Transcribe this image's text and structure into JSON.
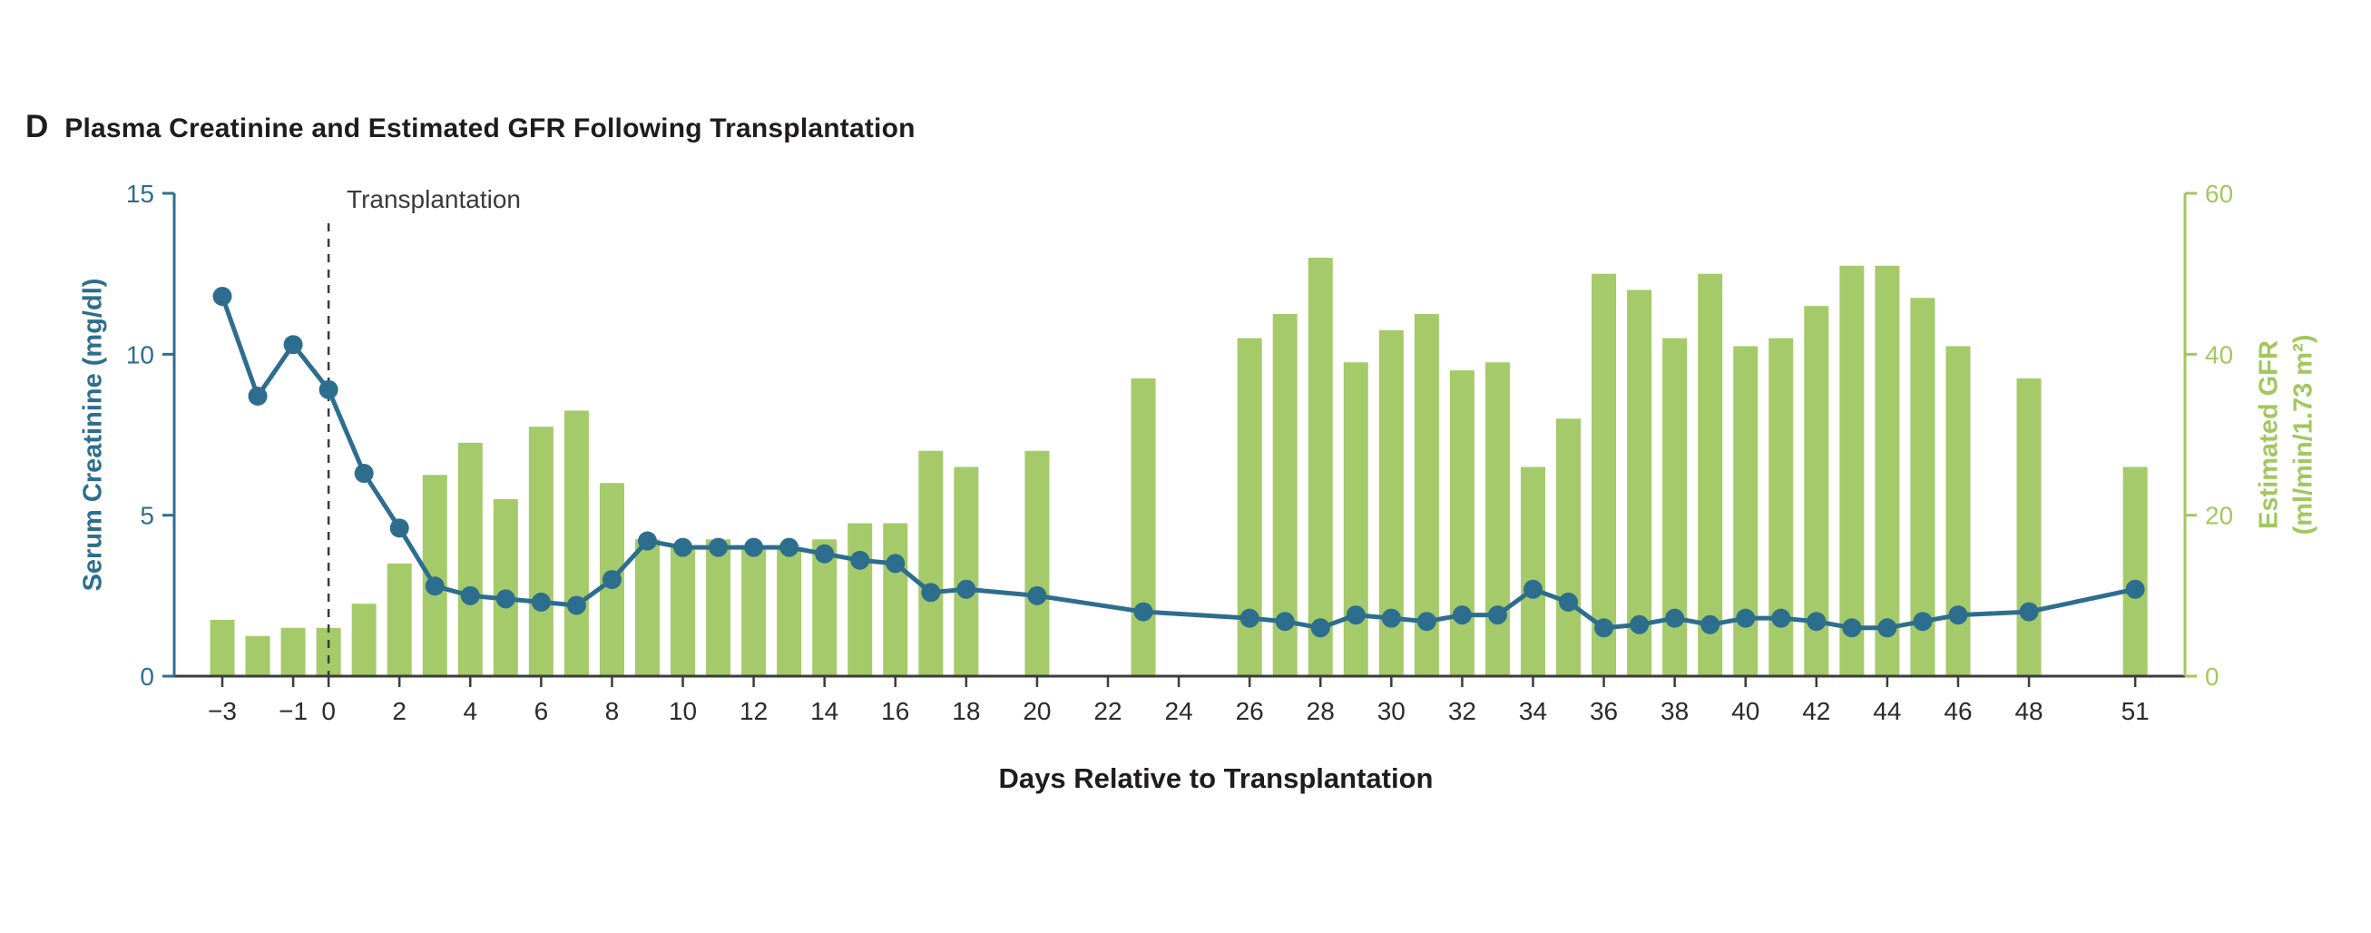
{
  "figure": {
    "panel_label": "D",
    "title": "Plasma Creatinine and Estimated GFR Following Transplantation"
  },
  "chart_data": {
    "type": "combo",
    "title": "Plasma Creatinine and Estimated GFR Following Transplantation",
    "x_axis": {
      "label": "Days Relative to Transplantation",
      "tick_days": [
        -3,
        -1,
        0,
        2,
        4,
        6,
        8,
        10,
        12,
        14,
        16,
        18,
        20,
        22,
        24,
        26,
        28,
        30,
        32,
        34,
        36,
        38,
        40,
        42,
        44,
        46,
        48,
        51
      ],
      "tick_labels": [
        "−3",
        "−1",
        "0",
        "2",
        "4",
        "6",
        "8",
        "10",
        "12",
        "14",
        "16",
        "18",
        "20",
        "22",
        "24",
        "26",
        "28",
        "30",
        "32",
        "34",
        "36",
        "38",
        "40",
        "42",
        "44",
        "46",
        "48",
        "51"
      ],
      "range": [
        -4.5,
        52.5
      ]
    },
    "left_axis": {
      "label": "Serum Creatinine (mg/dl)",
      "ticks": [
        0,
        5,
        10,
        15
      ],
      "range": [
        0,
        15
      ],
      "color": "#2d6e8e"
    },
    "right_axis": {
      "label_line1": "Estimated GFR",
      "label_line2": "(ml/min/1.73 m²)",
      "ticks": [
        0,
        20,
        40,
        60
      ],
      "range": [
        0,
        60
      ],
      "color": "#a3c75f"
    },
    "annotation": {
      "label": "Transplantation",
      "day": 0
    },
    "grid": false,
    "legend": "none",
    "series": [
      {
        "name": "Estimated GFR",
        "type": "bar",
        "axis": "right",
        "color": "#a5ca6a",
        "days": [
          -3,
          -2,
          -1,
          0,
          1,
          2,
          3,
          4,
          5,
          6,
          7,
          8,
          9,
          10,
          11,
          12,
          13,
          14,
          15,
          16,
          17,
          18,
          20,
          23,
          26,
          27,
          28,
          29,
          30,
          31,
          32,
          33,
          34,
          35,
          36,
          37,
          38,
          39,
          40,
          41,
          42,
          43,
          44,
          45,
          46,
          48,
          51
        ],
        "values": [
          7,
          5,
          6,
          6,
          9,
          14,
          25,
          29,
          22,
          31,
          33,
          24,
          17,
          16,
          17,
          16,
          16,
          17,
          19,
          19,
          28,
          26,
          28,
          37,
          42,
          45,
          52,
          39,
          43,
          45,
          38,
          39,
          26,
          32,
          50,
          48,
          42,
          50,
          41,
          42,
          46,
          51,
          51,
          47,
          41,
          37,
          26
        ]
      },
      {
        "name": "Serum Creatinine",
        "type": "line",
        "axis": "left",
        "color": "#2d6e8e",
        "days": [
          -3,
          -2,
          -1,
          0,
          1,
          2,
          3,
          4,
          5,
          6,
          7,
          8,
          9,
          10,
          11,
          12,
          13,
          14,
          15,
          16,
          17,
          18,
          20,
          23,
          26,
          27,
          28,
          29,
          30,
          31,
          32,
          33,
          34,
          35,
          36,
          37,
          38,
          39,
          40,
          41,
          42,
          43,
          44,
          45,
          46,
          48,
          51
        ],
        "values": [
          11.8,
          8.7,
          10.3,
          8.9,
          6.3,
          4.6,
          2.8,
          2.5,
          2.4,
          2.3,
          2.2,
          3.0,
          4.2,
          4.0,
          4.0,
          4.0,
          4.0,
          3.8,
          3.6,
          3.5,
          2.6,
          2.7,
          2.5,
          2.0,
          1.8,
          1.7,
          1.5,
          1.9,
          1.8,
          1.7,
          1.9,
          1.9,
          2.7,
          2.3,
          1.5,
          1.6,
          1.8,
          1.6,
          1.8,
          1.8,
          1.7,
          1.5,
          1.5,
          1.7,
          1.9,
          2.0,
          2.7
        ]
      }
    ]
  }
}
